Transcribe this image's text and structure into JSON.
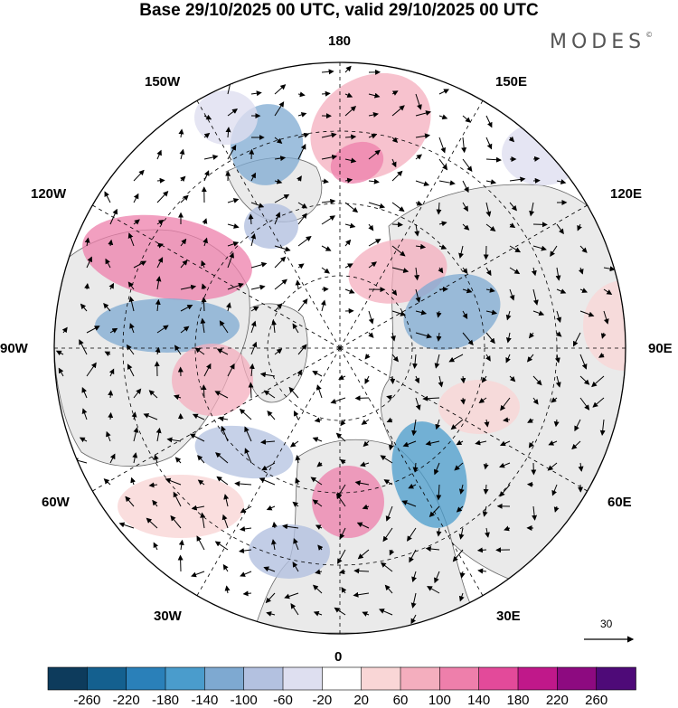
{
  "title": "Base 29/10/2025 00 UTC, valid 29/10/2025 00 UTC",
  "brand": {
    "name": "MODES",
    "mark": "©"
  },
  "longitude_labels": {
    "top": "180",
    "bottom": "0",
    "left": "90W",
    "right": "90E",
    "upper_left_1": "150W",
    "upper_left_2": "120W",
    "upper_right_1": "150E",
    "upper_right_2": "120E",
    "lower_left_1": "60W",
    "lower_left_2": "30W",
    "lower_right_1": "60E",
    "lower_right_2": "30E"
  },
  "vector_scale": {
    "label": "30"
  },
  "colorbar": {
    "ticks": [
      "-260",
      "-220",
      "-180",
      "-140",
      "-100",
      "-60",
      "-20",
      "20",
      "60",
      "100",
      "140",
      "180",
      "220",
      "260"
    ],
    "colors": [
      "#0d3b5c",
      "#14608f",
      "#2a80b9",
      "#4a9ccc",
      "#7ea9d1",
      "#b3c1e0",
      "#dedff0",
      "#ffffff",
      "#f9d6d6",
      "#f4aebe",
      "#ee7fab",
      "#e34a9a",
      "#c0188a",
      "#8d0a80",
      "#4e0a78"
    ]
  },
  "colors": {
    "land": "#eaeaea",
    "coast": "#666666"
  },
  "anomaly_blobs": [
    {
      "label": "pos-bering",
      "color": "#f4aebe"
    },
    {
      "label": "pos-alaska-core",
      "color": "#ee7fab"
    },
    {
      "label": "neg-aleutian",
      "color": "#7ea9d1"
    },
    {
      "label": "pos-canada",
      "color": "#ee7fab"
    },
    {
      "label": "neg-hudson",
      "color": "#7ea9d1"
    },
    {
      "label": "pos-greenland",
      "color": "#f4aebe"
    },
    {
      "label": "neg-atlantic",
      "color": "#b3c1e0"
    },
    {
      "label": "pos-europe",
      "color": "#ee7fab"
    },
    {
      "label": "neg-russia",
      "color": "#4a9ccc"
    },
    {
      "label": "pos-siberia",
      "color": "#f4aebe"
    },
    {
      "label": "neg-kara",
      "color": "#7ea9d1"
    },
    {
      "label": "pos-east",
      "color": "#f9d6d6"
    }
  ]
}
